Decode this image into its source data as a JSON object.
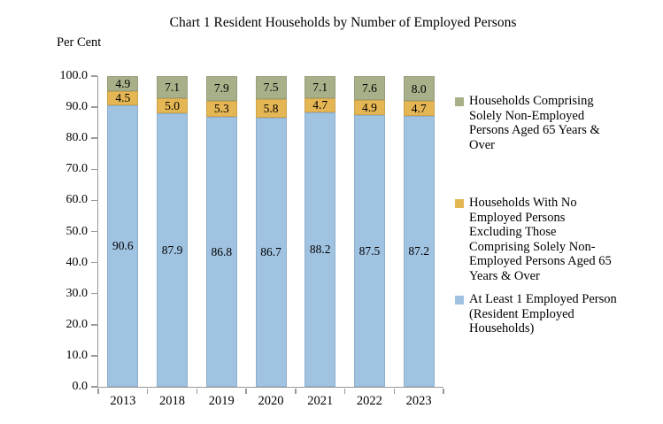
{
  "title": "Chart 1 Resident Households by Number of Employed Persons",
  "y_axis_title": "Per Cent",
  "chart_data": {
    "type": "bar",
    "stacked": true,
    "title": "Chart 1 Resident Households by Number of Employed Persons",
    "ylabel": "Per Cent",
    "xlabel": "",
    "categories": [
      "2013",
      "2018",
      "2019",
      "2020",
      "2021",
      "2022",
      "2023"
    ],
    "series": [
      {
        "name": "At Least 1 Employed Person (Resident Employed Households)",
        "color": "#A0C3E2",
        "values": [
          90.6,
          87.9,
          86.8,
          86.7,
          88.2,
          87.5,
          87.2
        ]
      },
      {
        "name": "Households With No Employed Persons Excluding Those Comprising Solely Non-Employed Persons Aged 65 Years & Over",
        "color": "#E4B654",
        "values": [
          4.5,
          5.0,
          5.3,
          5.8,
          4.7,
          4.9,
          4.7
        ]
      },
      {
        "name": "Households Comprising Solely Non-Employed Persons Aged 65 Years & Over",
        "color": "#A7B089",
        "values": [
          4.9,
          7.1,
          7.9,
          7.5,
          7.1,
          7.6,
          8.0
        ]
      }
    ],
    "ylim": [
      0,
      100
    ],
    "ytick_labels": [
      "100.0",
      "90.0",
      "80.0",
      "70.0",
      "60.0",
      "50.0",
      "40.0",
      "30.0",
      "20.0",
      "10.0",
      "0.0"
    ],
    "grid": false,
    "legend_position": "right",
    "data_labels": true
  },
  "legend": {
    "items": [
      {
        "label": "Households Comprising\nSolely Non-Employed\nPersons Aged 65 Years &\nOver",
        "color": "#A7B089"
      },
      {
        "label": "Households With No\nEmployed Persons\nExcluding Those\nComprising Solely Non-\nEmployed Persons Aged 65\nYears & Over",
        "color": "#E4B654"
      },
      {
        "label": "At Least 1 Employed Person\n(Resident Employed\nHouseholds)",
        "color": "#A0C3E2"
      }
    ]
  }
}
